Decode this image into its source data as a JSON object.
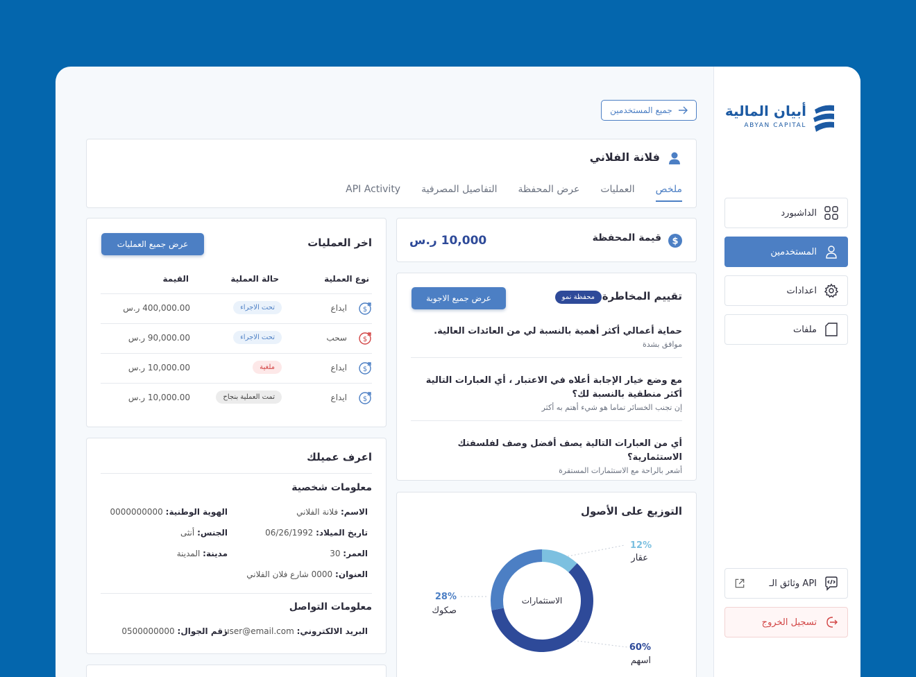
{
  "brand": {
    "name_ar": "أبيان المالية",
    "name_en": "ABYAN CAPITAL"
  },
  "sidebar": {
    "items": [
      {
        "label": "الداشبورد",
        "icon": "grid-icon"
      },
      {
        "label": "المستخدمين",
        "icon": "user-icon",
        "active": true
      },
      {
        "label": "اعدادات",
        "icon": "gear-icon"
      },
      {
        "label": "ملفات",
        "icon": "file-icon"
      }
    ],
    "api_docs": "وثائق الـ API",
    "logout": "تسجيل الخروج"
  },
  "header": {
    "all_users": "جميع المستخدمين"
  },
  "profile": {
    "name": "فلانة الفلاني",
    "tabs": [
      "ملخص",
      "العمليات",
      "عرض المحفظة",
      "التفاصيل المصرفية",
      "API Activity"
    ],
    "active_tab": 0
  },
  "portfolio": {
    "label": "قيمة المحفظة",
    "value": "10,000 ر.س"
  },
  "risk": {
    "title": "تقييم المخاطرة",
    "badge": "محفظة نمو",
    "button": "عرض جميع الاجوبة",
    "qa": [
      {
        "q": "حماية أعمالي أكثر أهمية بالنسبة لي من العائدات العالية.",
        "a": "موافق بشدة"
      },
      {
        "q": "مع وضع خيار الإجابة أعلاه في الاعتبار ، أي العبارات التالية أكثر منطقية بالنسبة لك؟",
        "a": "إن تجنب الخسائر تماما هو شيء أهتم به أكثر"
      },
      {
        "q": "أي من العبارات التالية يصف أفضل وصف لفلسفتك الاستثمارية؟",
        "a": "أشعر بالراحة مع الاستثمارات المستقرة"
      }
    ]
  },
  "transactions": {
    "title": "اخر العمليات",
    "button": "عرض جميع العمليات",
    "columns": [
      "نوع العملية",
      "حالة العملية",
      "القيمة"
    ],
    "rows": [
      {
        "type": "ايداع",
        "status": "تحت الاجراء",
        "status_kind": "pending",
        "value": "400,000.00 ر.س",
        "dir": "in"
      },
      {
        "type": "سحب",
        "status": "تحت الاجراء",
        "status_kind": "pending",
        "value": "90,000.00 ر.س",
        "dir": "out"
      },
      {
        "type": "ايداع",
        "status": "ملغية",
        "status_kind": "cancelled",
        "value": "10,000.00 ر.س",
        "dir": "in"
      },
      {
        "type": "ايداع",
        "status": "تمت العملية بنجاح",
        "status_kind": "done",
        "value": "10,000.00 ر.س",
        "dir": "in"
      }
    ]
  },
  "kyc": {
    "title": "اعرف عميلك",
    "personal_title": "معلومات شخصية",
    "fields": [
      {
        "label": "الاسم:",
        "value": "فلانة الفلاني"
      },
      {
        "label": "الهوية الوطنية:",
        "value": "0000000000"
      },
      {
        "label": "تاريخ الميلاد:",
        "value": "06/26/1992"
      },
      {
        "label": "الجنس:",
        "value": "أنثى"
      },
      {
        "label": "العمر:",
        "value": "30"
      },
      {
        "label": "مدينة:",
        "value": "المدينة"
      },
      {
        "label": "العنوان:",
        "value": "0000 شارع فلان الفلاني"
      }
    ],
    "contact_title": "معلومات التواصل",
    "contact": [
      {
        "label": "البريد الالكتروني:",
        "value": "user@email.com"
      },
      {
        "label": "رقم الجوال:",
        "value": "0500000000"
      }
    ]
  },
  "allocation": {
    "title": "التوزيع على الأصول",
    "center_label": "الاستثمارات"
  },
  "chart_data": {
    "type": "pie",
    "title": "التوزيع على الأصول",
    "categories": [
      "عقار",
      "صكوك",
      "اسهم"
    ],
    "values": [
      12,
      28,
      60
    ],
    "labels": [
      "12%",
      "28%",
      "60%"
    ],
    "colors": [
      "#7cc0e0",
      "#4c7fc4",
      "#2e4a99"
    ]
  }
}
